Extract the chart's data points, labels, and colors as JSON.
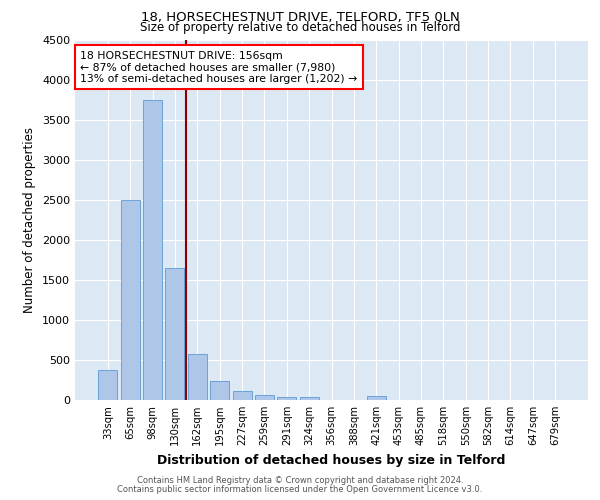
{
  "title_line1": "18, HORSECHESTNUT DRIVE, TELFORD, TF5 0LN",
  "title_line2": "Size of property relative to detached houses in Telford",
  "xlabel": "Distribution of detached houses by size in Telford",
  "ylabel": "Number of detached properties",
  "footer_line1": "Contains HM Land Registry data © Crown copyright and database right 2024.",
  "footer_line2": "Contains public sector information licensed under the Open Government Licence v3.0.",
  "annotation_line1": "18 HORSECHESTNUT DRIVE: 156sqm",
  "annotation_line2": "← 87% of detached houses are smaller (7,980)",
  "annotation_line3": "13% of semi-detached houses are larger (1,202) →",
  "categories": [
    "33sqm",
    "65sqm",
    "98sqm",
    "130sqm",
    "162sqm",
    "195sqm",
    "227sqm",
    "259sqm",
    "291sqm",
    "324sqm",
    "356sqm",
    "388sqm",
    "421sqm",
    "453sqm",
    "485sqm",
    "518sqm",
    "550sqm",
    "582sqm",
    "614sqm",
    "647sqm",
    "679sqm"
  ],
  "values": [
    380,
    2500,
    3750,
    1650,
    580,
    240,
    110,
    60,
    40,
    40,
    0,
    0,
    55,
    0,
    0,
    0,
    0,
    0,
    0,
    0,
    0
  ],
  "bar_color": "#aec6e8",
  "bar_edge_color": "#5b9bd5",
  "property_line_color": "#8b0000",
  "background_color": "#dce9f5",
  "grid_color": "#ffffff",
  "ylim": [
    0,
    4500
  ],
  "yticks": [
    0,
    500,
    1000,
    1500,
    2000,
    2500,
    3000,
    3500,
    4000,
    4500
  ]
}
